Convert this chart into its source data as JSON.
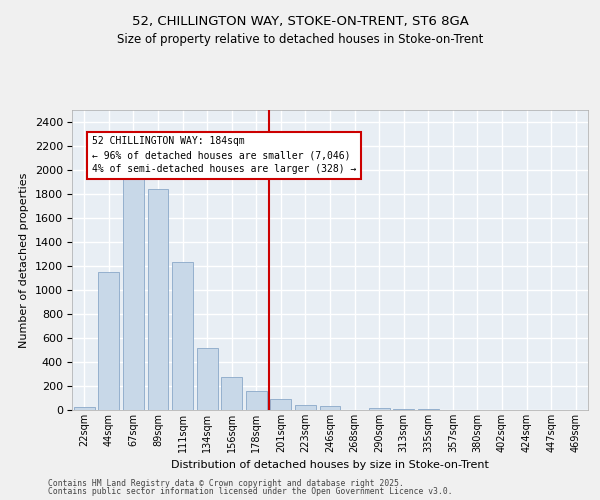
{
  "title_line1": "52, CHILLINGTON WAY, STOKE-ON-TRENT, ST6 8GA",
  "title_line2": "Size of property relative to detached houses in Stoke-on-Trent",
  "xlabel": "Distribution of detached houses by size in Stoke-on-Trent",
  "ylabel": "Number of detached properties",
  "bar_labels": [
    "22sqm",
    "44sqm",
    "67sqm",
    "89sqm",
    "111sqm",
    "134sqm",
    "156sqm",
    "178sqm",
    "201sqm",
    "223sqm",
    "246sqm",
    "268sqm",
    "290sqm",
    "313sqm",
    "335sqm",
    "357sqm",
    "380sqm",
    "402sqm",
    "424sqm",
    "447sqm",
    "469sqm"
  ],
  "bar_values": [
    25,
    1150,
    1950,
    1845,
    1230,
    520,
    275,
    160,
    90,
    45,
    35,
    2,
    15,
    5,
    5,
    2,
    2,
    2,
    2,
    2,
    2
  ],
  "bar_color": "#c8d8e8",
  "bar_edge_color": "#8aa8c8",
  "vline_x": 7.5,
  "vline_color": "#cc0000",
  "annotation_text": "52 CHILLINGTON WAY: 184sqm\n← 96% of detached houses are smaller (7,046)\n4% of semi-detached houses are larger (328) →",
  "annotation_box_color": "#ffffff",
  "annotation_box_edge": "#cc0000",
  "ylim": [
    0,
    2500
  ],
  "yticks": [
    0,
    200,
    400,
    600,
    800,
    1000,
    1200,
    1400,
    1600,
    1800,
    2000,
    2200,
    2400
  ],
  "bg_color": "#e8eef4",
  "grid_color": "#ffffff",
  "footer_line1": "Contains HM Land Registry data © Crown copyright and database right 2025.",
  "footer_line2": "Contains public sector information licensed under the Open Government Licence v3.0."
}
